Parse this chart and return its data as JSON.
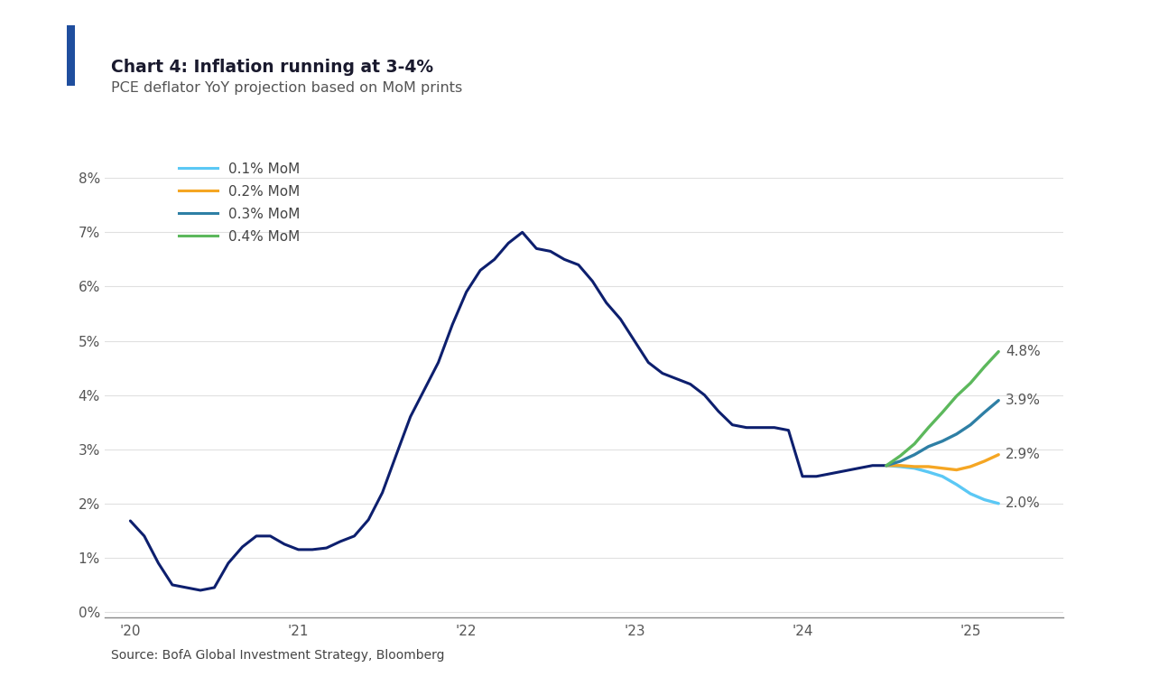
{
  "title": "Chart 4: Inflation running at 3-4%",
  "subtitle": "PCE deflator YoY projection based on MoM prints",
  "source": "Source: BofA Global Investment Strategy, Bloomberg",
  "background_color": "#ffffff",
  "accent_bar_color": "#1f4e9e",
  "main_line_color": "#0d1f6e",
  "line_colors": {
    "0.1% MoM": "#5bc8f5",
    "0.2% MoM": "#f5a623",
    "0.3% MoM": "#2e7fa5",
    "0.4% MoM": "#5cb85c"
  },
  "end_labels": {
    "0.1% MoM": "2.0%",
    "0.2% MoM": "2.9%",
    "0.3% MoM": "3.9%",
    "0.4% MoM": "4.8%"
  },
  "end_label_y": {
    "0.1% MoM": 0.02,
    "0.2% MoM": 0.029,
    "0.3% MoM": 0.039,
    "0.4% MoM": 0.048
  },
  "yticks": [
    0.0,
    0.01,
    0.02,
    0.03,
    0.04,
    0.05,
    0.06,
    0.07,
    0.08
  ],
  "ytick_labels": [
    "0%",
    "1%",
    "2%",
    "3%",
    "4%",
    "5%",
    "6%",
    "7%",
    "8%"
  ],
  "xtick_positions": [
    2020,
    2021,
    2022,
    2023,
    2024,
    2025
  ],
  "xtick_labels": [
    "'20",
    "'21",
    "'22",
    "'23",
    "'24",
    "'25"
  ],
  "main_data_x": [
    2020.0,
    2020.083,
    2020.167,
    2020.25,
    2020.333,
    2020.417,
    2020.5,
    2020.583,
    2020.667,
    2020.75,
    2020.833,
    2020.917,
    2021.0,
    2021.083,
    2021.167,
    2021.25,
    2021.333,
    2021.417,
    2021.5,
    2021.583,
    2021.667,
    2021.75,
    2021.833,
    2021.917,
    2022.0,
    2022.083,
    2022.167,
    2022.25,
    2022.333,
    2022.417,
    2022.5,
    2022.583,
    2022.667,
    2022.75,
    2022.833,
    2022.917,
    2023.0,
    2023.083,
    2023.167,
    2023.25,
    2023.333,
    2023.417,
    2023.5,
    2023.583,
    2023.667,
    2023.75,
    2023.833,
    2023.917,
    2024.0,
    2024.083,
    2024.167,
    2024.25,
    2024.333,
    2024.417,
    2024.5
  ],
  "main_data_y": [
    0.0168,
    0.014,
    0.009,
    0.005,
    0.0045,
    0.004,
    0.0045,
    0.009,
    0.012,
    0.014,
    0.014,
    0.0125,
    0.0115,
    0.0115,
    0.0118,
    0.013,
    0.014,
    0.017,
    0.022,
    0.029,
    0.036,
    0.041,
    0.046,
    0.053,
    0.059,
    0.063,
    0.065,
    0.068,
    0.07,
    0.067,
    0.0665,
    0.065,
    0.064,
    0.061,
    0.057,
    0.054,
    0.05,
    0.046,
    0.044,
    0.043,
    0.042,
    0.04,
    0.037,
    0.0345,
    0.034,
    0.034,
    0.034,
    0.0335,
    0.025,
    0.025,
    0.0255,
    0.026,
    0.0265,
    0.027,
    0.027
  ],
  "projection_data": {
    "0.1% MoM": {
      "x": [
        2024.5,
        2024.583,
        2024.667,
        2024.75,
        2024.833,
        2024.917,
        2025.0,
        2025.083,
        2025.167
      ],
      "y": [
        0.027,
        0.0268,
        0.0265,
        0.0258,
        0.025,
        0.0235,
        0.0218,
        0.0207,
        0.02
      ]
    },
    "0.2% MoM": {
      "x": [
        2024.5,
        2024.583,
        2024.667,
        2024.75,
        2024.833,
        2024.917,
        2025.0,
        2025.083,
        2025.167
      ],
      "y": [
        0.027,
        0.027,
        0.0268,
        0.0268,
        0.0265,
        0.0262,
        0.0268,
        0.0278,
        0.029
      ]
    },
    "0.3% MoM": {
      "x": [
        2024.5,
        2024.583,
        2024.667,
        2024.75,
        2024.833,
        2024.917,
        2025.0,
        2025.083,
        2025.167
      ],
      "y": [
        0.027,
        0.0278,
        0.029,
        0.0305,
        0.0315,
        0.0328,
        0.0345,
        0.0368,
        0.039
      ]
    },
    "0.4% MoM": {
      "x": [
        2024.5,
        2024.583,
        2024.667,
        2024.75,
        2024.833,
        2024.917,
        2025.0,
        2025.083,
        2025.167
      ],
      "y": [
        0.027,
        0.0288,
        0.031,
        0.034,
        0.0368,
        0.0398,
        0.0422,
        0.0452,
        0.048
      ]
    }
  }
}
